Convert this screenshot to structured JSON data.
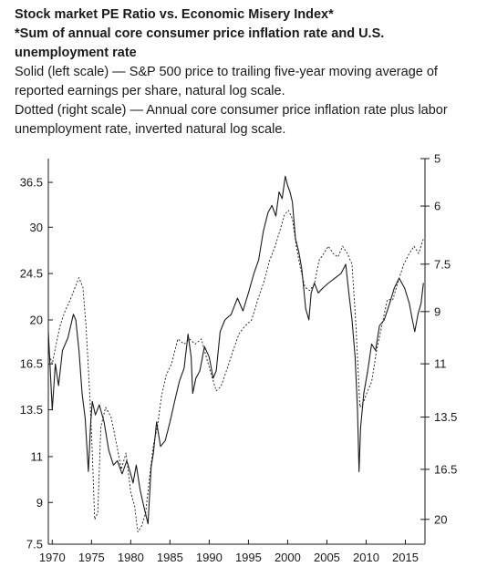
{
  "chart_data": {
    "type": "line",
    "title": "Stock market PE Ratio vs. Economic Misery Index*",
    "subtitle": "*Sum of annual core consumer price inflation rate and U.S. unemployment rate",
    "notes": [
      "Solid (left scale) — S&P 500 price to trailing five-year moving average of reported earnings per share, natural log scale.",
      "Dotted (right scale) — Annual core consumer price inflation rate plus labor unemployment rate, inverted natural log scale."
    ],
    "xlabel": "",
    "ylabel": "",
    "x_ticks": [
      1970,
      1975,
      1980,
      1985,
      1990,
      1995,
      2000,
      2005,
      2010,
      2015
    ],
    "xlim": [
      1969.5,
      2017.5
    ],
    "left_axis": {
      "scale": "log",
      "ylim": [
        7.5,
        40.5
      ],
      "ticks": [
        7.5,
        9,
        11,
        13.5,
        16.5,
        20,
        24.5,
        30,
        36.5
      ],
      "tick_labels": [
        "7.5",
        "9",
        "11",
        "13.5",
        "16.5",
        "20",
        "24.5",
        "30",
        "36.5"
      ]
    },
    "right_axis": {
      "scale": "log",
      "inverted": true,
      "ylim": [
        5,
        22
      ],
      "ticks": [
        5,
        6,
        7.5,
        9,
        11,
        13.5,
        16.5,
        20
      ],
      "tick_labels": [
        "5",
        "6",
        "7.5",
        "9",
        "11",
        "13.5",
        "16.5",
        "20"
      ]
    },
    "grid": false,
    "legend": "none",
    "series": [
      {
        "line_style": "solid",
        "axis": "left",
        "color": "#1a1a1a",
        "x": [
          1969.5,
          1970.0,
          1970.4,
          1970.8,
          1971.3,
          1972.0,
          1972.7,
          1973.0,
          1973.4,
          1973.8,
          1974.2,
          1974.6,
          1974.9,
          1975.1,
          1975.5,
          1976.0,
          1976.6,
          1977.2,
          1977.8,
          1978.3,
          1978.9,
          1979.5,
          1980.0,
          1980.3,
          1980.7,
          1981.2,
          1981.7,
          1982.2,
          1982.6,
          1982.9,
          1983.3,
          1983.8,
          1984.4,
          1985.0,
          1985.6,
          1986.2,
          1986.8,
          1987.3,
          1987.7,
          1987.9,
          1988.3,
          1988.8,
          1989.4,
          1990.0,
          1990.5,
          1990.9,
          1991.4,
          1992.0,
          1992.8,
          1993.6,
          1994.3,
          1995.0,
          1995.7,
          1996.3,
          1996.9,
          1997.5,
          1998.0,
          1998.5,
          1998.9,
          1999.3,
          1999.7,
          2000.0,
          2000.3,
          2000.6,
          2001.0,
          2001.4,
          2001.8,
          2002.3,
          2002.7,
          2003.0,
          2003.4,
          2003.9,
          2004.5,
          2005.2,
          2006.0,
          2006.8,
          2007.4,
          2007.8,
          2008.2,
          2008.6,
          2008.9,
          2009.1,
          2009.3,
          2009.7,
          2010.2,
          2010.7,
          2011.2,
          2011.7,
          2012.3,
          2013.0,
          2013.6,
          2014.2,
          2014.9,
          2015.5,
          2015.9,
          2016.2,
          2016.6,
          2017.0,
          2017.3
        ],
        "values": [
          19.0,
          13.5,
          16.5,
          15.0,
          17.5,
          18.5,
          20.5,
          20.0,
          17.5,
          14.5,
          13.0,
          10.3,
          12.8,
          14.0,
          13.2,
          13.8,
          12.8,
          11.3,
          10.6,
          10.8,
          10.2,
          10.8,
          10.2,
          9.8,
          10.6,
          9.5,
          8.8,
          8.2,
          10.5,
          11.2,
          12.8,
          11.5,
          11.8,
          12.8,
          14.0,
          15.3,
          16.2,
          18.8,
          17.0,
          14.5,
          15.5,
          16.0,
          17.8,
          17.0,
          15.5,
          16.0,
          19.0,
          20.0,
          20.5,
          22.0,
          20.8,
          22.5,
          24.5,
          26.0,
          29.5,
          32.0,
          33.0,
          31.5,
          35.0,
          34.0,
          37.5,
          36.0,
          35.0,
          33.5,
          28.5,
          27.0,
          25.0,
          21.0,
          20.0,
          22.5,
          23.5,
          22.5,
          23.0,
          23.5,
          24.0,
          24.5,
          25.5,
          22.5,
          20.0,
          17.0,
          13.5,
          10.3,
          12.5,
          14.5,
          16.0,
          18.0,
          17.5,
          19.5,
          20.0,
          21.5,
          23.0,
          24.0,
          23.0,
          21.5,
          20.0,
          19.0,
          20.5,
          21.5,
          23.5
        ]
      },
      {
        "line_style": "dotted",
        "axis": "right",
        "color": "#1a1a1a",
        "x": [
          1969.5,
          1970.0,
          1970.5,
          1971.0,
          1971.6,
          1972.3,
          1972.9,
          1973.4,
          1973.9,
          1974.3,
          1974.8,
          1975.1,
          1975.4,
          1975.8,
          1976.2,
          1976.8,
          1977.5,
          1978.2,
          1978.8,
          1979.4,
          1980.0,
          1980.5,
          1980.9,
          1981.4,
          1981.9,
          1982.4,
          1982.9,
          1983.4,
          1983.9,
          1984.5,
          1985.2,
          1986.0,
          1986.8,
          1987.5,
          1988.2,
          1989.0,
          1989.7,
          1990.3,
          1990.9,
          1991.5,
          1992.2,
          1993.0,
          1993.8,
          1994.6,
          1995.4,
          1996.2,
          1997.0,
          1997.7,
          1998.4,
          1999.0,
          1999.6,
          2000.1,
          2000.6,
          2001.1,
          2001.6,
          2002.2,
          2002.8,
          2003.4,
          2004.0,
          2004.6,
          2005.2,
          2005.8,
          2006.4,
          2007.0,
          2007.6,
          2008.2,
          2008.7,
          2009.2,
          2009.6,
          2010.1,
          2010.7,
          2011.3,
          2012.0,
          2012.7,
          2013.4,
          2014.1,
          2014.8,
          2015.5,
          2016.1,
          2016.7,
          2017.3
        ],
        "values": [
          10.5,
          11.0,
          10.2,
          9.5,
          9.0,
          8.6,
          8.2,
          7.9,
          8.2,
          9.5,
          12.5,
          15.5,
          20.0,
          19.5,
          14.0,
          13.0,
          13.5,
          15.0,
          16.5,
          15.5,
          18.0,
          19.0,
          21.0,
          20.5,
          19.5,
          17.0,
          15.0,
          14.0,
          12.5,
          11.5,
          11.0,
          10.0,
          10.2,
          10.0,
          10.2,
          10.0,
          10.8,
          11.5,
          12.2,
          12.0,
          11.3,
          10.5,
          9.8,
          9.5,
          9.3,
          8.6,
          8.0,
          7.4,
          7.0,
          6.6,
          6.2,
          6.1,
          6.3,
          7.0,
          7.6,
          8.2,
          8.3,
          8.1,
          7.4,
          7.2,
          7.0,
          7.2,
          7.3,
          7.0,
          7.2,
          7.5,
          9.5,
          13.0,
          12.8,
          12.3,
          11.8,
          10.5,
          9.5,
          8.6,
          8.6,
          8.0,
          7.5,
          7.2,
          7.0,
          7.2,
          6.8
        ]
      }
    ]
  }
}
